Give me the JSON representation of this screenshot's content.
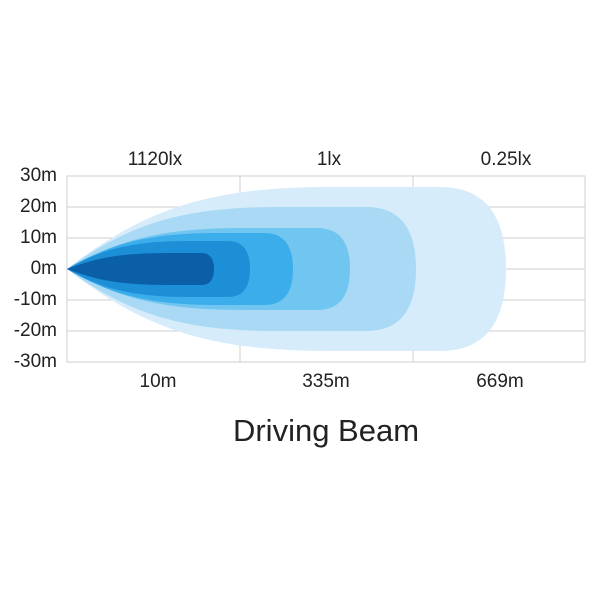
{
  "title": "Driving Beam",
  "lux_labels": [
    "1120lx",
    "1lx",
    "0.25lx"
  ],
  "y_axis": {
    "labels": [
      "30m",
      "20m",
      "10m",
      "0m",
      "-10m",
      "-20m",
      "-30m"
    ]
  },
  "x_axis": {
    "labels": [
      "10m",
      "335m",
      "669m"
    ]
  }
}
